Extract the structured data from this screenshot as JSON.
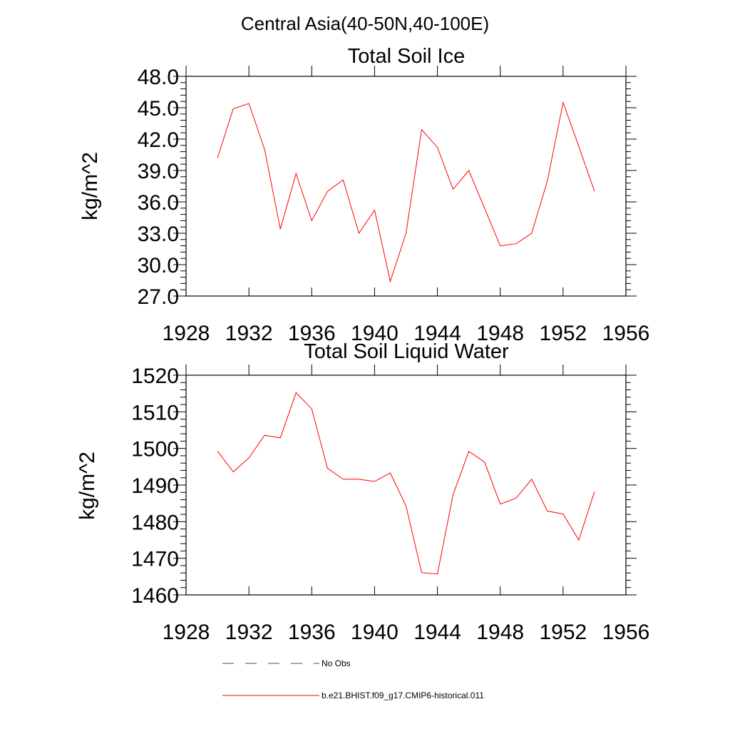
{
  "figure": {
    "title": "Central Asia(40-50N,40-100E)"
  },
  "colors": {
    "series": "#ff0000",
    "obs": "#4a4a6a",
    "axis": "#000000",
    "background": "#ffffff"
  },
  "chart_data": [
    {
      "type": "line",
      "title": "Total Soil Ice",
      "xlabel": "",
      "ylabel": "kg/m^2",
      "xlim": [
        1928,
        1956
      ],
      "ylim": [
        27,
        48
      ],
      "xticks": [
        1928,
        1932,
        1936,
        1940,
        1944,
        1948,
        1952,
        1956
      ],
      "xtick_labels": [
        "1928",
        "1932",
        "1936",
        "1940",
        "1944",
        "1948",
        "1952",
        "1956"
      ],
      "yticks": [
        27,
        30,
        33,
        36,
        39,
        42,
        45,
        48
      ],
      "ytick_labels": [
        "27.0",
        "30.0",
        "33.0",
        "36.0",
        "39.0",
        "42.0",
        "45.0",
        "48.0"
      ],
      "grid": false,
      "series": [
        {
          "name": "b.e21.BHIST.f09_g17.CMIP6-historical.011",
          "color": "#ff0000",
          "x": [
            1930,
            1931,
            1932,
            1933,
            1934,
            1935,
            1936,
            1937,
            1938,
            1939,
            1940,
            1941,
            1942,
            1943,
            1944,
            1945,
            1946,
            1947,
            1948,
            1949,
            1950,
            1951,
            1952,
            1953,
            1954
          ],
          "values": [
            40.2,
            44.9,
            45.4,
            41.0,
            33.4,
            38.7,
            34.2,
            37.0,
            38.1,
            33.0,
            35.2,
            28.4,
            33.0,
            42.9,
            41.2,
            37.2,
            39.0,
            35.4,
            31.8,
            32.0,
            33.0,
            38.0,
            45.5,
            41.3,
            37.0
          ]
        }
      ]
    },
    {
      "type": "line",
      "title": "Total Soil Liquid Water",
      "xlabel": "",
      "ylabel": "kg/m^2",
      "xlim": [
        1928,
        1956
      ],
      "ylim": [
        1460,
        1520
      ],
      "xticks": [
        1928,
        1932,
        1936,
        1940,
        1944,
        1948,
        1952,
        1956
      ],
      "xtick_labels": [
        "1928",
        "1932",
        "1936",
        "1940",
        "1944",
        "1948",
        "1952",
        "1956"
      ],
      "yticks": [
        1460,
        1470,
        1480,
        1490,
        1500,
        1510,
        1520
      ],
      "ytick_labels": [
        "1460",
        "1470",
        "1480",
        "1490",
        "1500",
        "1510",
        "1520"
      ],
      "grid": false,
      "series": [
        {
          "name": "b.e21.BHIST.f09_g17.CMIP6-historical.011",
          "color": "#ff0000",
          "x": [
            1930,
            1931,
            1932,
            1933,
            1934,
            1935,
            1936,
            1937,
            1938,
            1939,
            1940,
            1941,
            1942,
            1943,
            1944,
            1945,
            1946,
            1947,
            1948,
            1949,
            1950,
            1951,
            1952,
            1953,
            1954
          ],
          "values": [
            1499.3,
            1493.6,
            1497.4,
            1503.6,
            1502.9,
            1515.2,
            1510.8,
            1494.6,
            1491.6,
            1491.6,
            1491.0,
            1493.3,
            1484.3,
            1466.1,
            1465.7,
            1487.4,
            1499.2,
            1496.3,
            1484.8,
            1486.4,
            1491.6,
            1482.9,
            1482.1,
            1475.0,
            1488.2
          ]
        }
      ]
    }
  ],
  "legend": {
    "placement": "bottom",
    "entries": [
      {
        "label": "No Obs",
        "style": "dashed",
        "color": "#4a4a6a"
      },
      {
        "label": "b.e21.BHIST.f09_g17.CMIP6-historical.011",
        "style": "solid",
        "color": "#ff0000"
      }
    ]
  }
}
